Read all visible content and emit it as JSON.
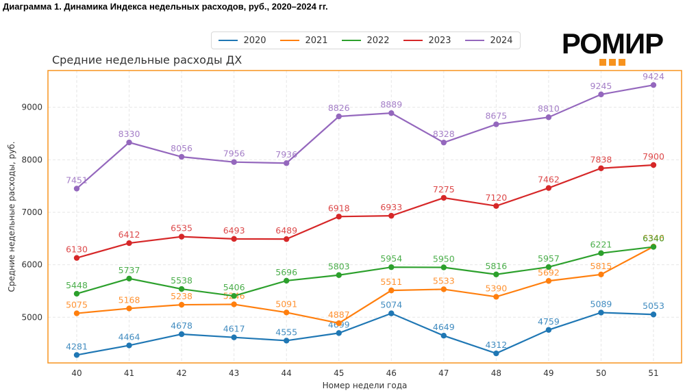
{
  "page": {
    "heading": "Диаграмма 1. Динамика Индекса недельных расходов, руб., 2020–2024 гг.",
    "logo": {
      "text": "РОМИР",
      "accent_color": "#f7931e"
    }
  },
  "chart_data": {
    "type": "line",
    "title": "Средние недельные расходы ДХ",
    "xlabel": "Номер недели года",
    "ylabel": "Средние недельные расходы, руб.",
    "x": [
      40,
      41,
      42,
      43,
      44,
      45,
      46,
      47,
      48,
      49,
      50,
      51
    ],
    "x_tick_labels": [
      "40",
      "41",
      "42",
      "43",
      "44",
      "45",
      "46",
      "47",
      "48",
      "49",
      "50",
      "51"
    ],
    "y_ticks": [
      5000,
      6000,
      7000,
      8000,
      9000
    ],
    "y_tick_labels": [
      "5000",
      "6000",
      "7000",
      "8000",
      "9000"
    ],
    "ylim": [
      4130,
      9700
    ],
    "grid": true,
    "legend_position": "top-center",
    "frame_color": "#f7931e",
    "series": [
      {
        "name": "2020",
        "color": "#1f77b4",
        "values": [
          4281,
          4464,
          4678,
          4617,
          4555,
          4699,
          5074,
          4649,
          4312,
          4759,
          5089,
          5053
        ]
      },
      {
        "name": "2021",
        "color": "#ff7f0e",
        "values": [
          5075,
          5168,
          5238,
          5246,
          5091,
          4887,
          5511,
          5533,
          5390,
          5692,
          5815,
          6346
        ]
      },
      {
        "name": "2022",
        "color": "#2ca02c",
        "values": [
          5448,
          5737,
          5538,
          5406,
          5696,
          5803,
          5954,
          5950,
          5816,
          5957,
          6221,
          6340
        ]
      },
      {
        "name": "2023",
        "color": "#d62728",
        "values": [
          6130,
          6412,
          6535,
          6493,
          6489,
          6918,
          6933,
          7275,
          7120,
          7462,
          7838,
          7900
        ]
      },
      {
        "name": "2024",
        "color": "#9467bd",
        "values": [
          7451,
          8330,
          8056,
          7956,
          7936,
          8826,
          8889,
          8328,
          8675,
          8810,
          9245,
          9424
        ]
      }
    ]
  }
}
